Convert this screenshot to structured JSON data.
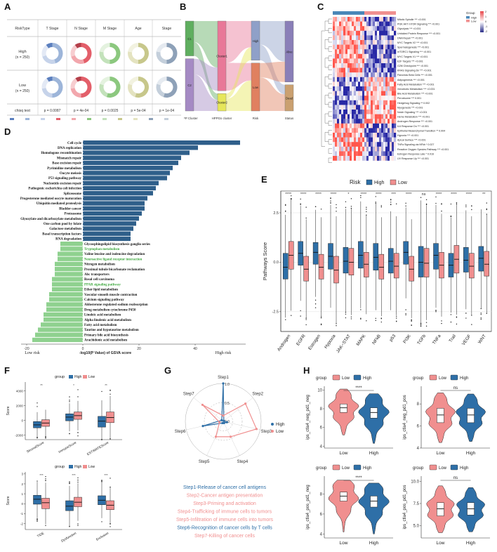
{
  "labels": {
    "A": "A",
    "B": "B",
    "C": "C",
    "D": "D",
    "E": "E",
    "F": "F",
    "G": "G",
    "H": "H"
  },
  "colors": {
    "high": "#2e6fa7",
    "low": "#f08f8f",
    "bar_pos": "#2f5f8a",
    "bar_neg": "#8fd18f",
    "green_text": "#3aa63a"
  },
  "panelA": {
    "headers": [
      "RiskType",
      "T Stage",
      "N Stage",
      "M Stage",
      "Age",
      "Stage"
    ],
    "rows": [
      {
        "name": "High",
        "n": "(n = 250)"
      },
      {
        "name": "Low",
        "n": "(n = 250)"
      }
    ],
    "test_label": "chisq test",
    "pvalues": [
      "p = 0.0087",
      "p = 4e-04",
      "p = 0.0025",
      "p = 5e-04",
      "p = 1e-04"
    ]
  },
  "panelB": {
    "axis_labels": [
      "TPP Cluster",
      "HPPGs cluster",
      "Risk",
      "Status"
    ],
    "col1": [
      "C1",
      "C2"
    ],
    "col2": [
      "Cluster1",
      "Cluster2"
    ],
    "col3": [
      "High",
      "Low"
    ],
    "col4": [
      "Alive",
      "Dead"
    ]
  },
  "panelC": {
    "legend_title": "Group",
    "legend_items": [
      "High",
      "Low"
    ],
    "scale": [
      "2",
      "1",
      "0",
      "-1",
      "-2"
    ],
    "pathways": [
      "Mitotic Spindle *** <0.001",
      "PI3K AKT mTOR Signaling *** <0.001",
      "Glycolysis *** <0.001",
      "Unfolded Protein Response *** <0.001",
      "DNA Repair *** <0.001",
      "MYC Targets V2 *** <0.001",
      "Spermatogenesis *** <0.001",
      "mTORC1 Signaling *** <0.001",
      "MYC Targets V1 *** <0.001",
      "E2F Targets *** <0.001",
      "G2M Checkpoint *** <0.001",
      "KRAS Signaling Dn *** <0.001",
      "Pancreas Beta Cells *** <0.001",
      "Adipogenesis *** <0.001",
      "Fatty Acid Metabolism *** <0.001",
      "Xenobiotic Metabolism *** <0.001",
      "Bile Acid Metabolism *** <0.001",
      "Peroxisome *** 0.001",
      "Hedgehog Signaling ** 0.002",
      "Myogenesis *** <0.001",
      "Notch Signaling *** <0.001",
      "Heme Metabolism *** <0.001",
      "Androgen Response *** <0.001",
      "IL6 Response Dn *** <0.001",
      "Epithelial Mesenchymal Transition ** 0.004",
      "Hypoxia *** <0.001",
      "Apical Surface *** <0.001",
      "TNFa Signaling via NFkb * 0.027",
      "Reactive Oxygen Species Pathway *** <0.001",
      "Estrogen Response Late * 0.016",
      "UV Response Up *** <0.001"
    ]
  },
  "panelF_legend": {
    "title": "group",
    "high": "High",
    "low": "Low"
  },
  "panelG": {
    "steps": [
      "Step1",
      "Step2",
      "Step3",
      "Step4",
      "Step5",
      "Step6",
      "Step7"
    ],
    "ticks": [
      "1.0",
      "0.5",
      "0.0"
    ],
    "legend": [
      "High",
      "Low"
    ],
    "descriptions": [
      "Step1-Release of cancer cell antigens",
      "Step2-Cancer antigen presentation",
      "Step3-Priming and activation",
      "Step4-Trafficking of immune cells to tumors",
      "Step5-Infiltration of immune cells into tumors",
      "Step6-Recognition of cancer cells by T cells",
      "Step7-Killing of cancer cells"
    ],
    "desc_colors": [
      "#2e6fa7",
      "#f08f8f",
      "#f08f8f",
      "#f08f8f",
      "#f08f8f",
      "#2e6fa7",
      "#f08f8f"
    ]
  },
  "chart_data": [
    {
      "id": "D",
      "type": "bar",
      "orientation": "horizontal",
      "xlabel": "-log10(P Value) of GSVA score",
      "annotations": [
        "Low risk",
        "High risk"
      ],
      "xticks": [
        "-20",
        "0",
        "20",
        "40"
      ],
      "xlim": [
        -22,
        58
      ],
      "categories": [
        "Cell cycle",
        "DNA replication",
        "Homologous recombination",
        "Mismatch repair",
        "Base excision repair",
        "Pyrimidine metabolism",
        "Oocyte meiosis",
        "P53 signaling pathway",
        "Nucleotide excision repair",
        "Pathogenic escherichia coli infection",
        "Spliceosome",
        "Progesterone mediated oocyte maturation",
        "Ubiquitin mediated proteolysis",
        "Bladder cancer",
        "Proteasome",
        "Glyoxylate and dicarboxylate metabolism",
        "One carbon pool by folate",
        "Galactose metabolism",
        "Basal transcription factors",
        "RNA degradation",
        "Glycosphingolipid biosynthesis ganglio series",
        "Tryptophan metabolism",
        "Valine leucine and isoleucine degradation",
        "Neuroactive ligand receptor interaction",
        "Nitrogen metabolism",
        "Proximal tubule bicarbonate reclamation",
        "Abc transporters",
        "Basal cell carcinoma",
        "PPAR signaling pathway",
        "Ether lipid metabolism",
        "Vascular smooth muscle contraction",
        "Calcium signaling pathway",
        "Aldosterone regulated sodium reabsorption",
        "Drug metabolism cytochrome P450",
        "Linoleic acid metabolism",
        "Alpha linolenic acid metabolism",
        "Fatty acid metabolism",
        "Taurine and hypotaurine metabolism",
        "Primary bile acid biosynthesis",
        "Arachidonic acid metabolism"
      ],
      "values": [
        56,
        41,
        38,
        35,
        34,
        32,
        31,
        30,
        27,
        26,
        25,
        23,
        22,
        22,
        21,
        20,
        19,
        18,
        17,
        17,
        -8,
        -8,
        -9,
        -9,
        -10,
        -10,
        -10,
        -11,
        -11,
        -11,
        -12,
        -12,
        -13,
        -13,
        -14,
        -14,
        -15,
        -16,
        -17,
        -18
      ],
      "green_labels": [
        21,
        23,
        28
      ]
    },
    {
      "id": "E",
      "type": "box",
      "title": "Risk",
      "legend": [
        "High",
        "Low"
      ],
      "ylabel": "Pathways Score",
      "yticks": [
        "-2.5",
        "0.0",
        "2.5"
      ],
      "ylim": [
        -3.5,
        3.6
      ],
      "categories": [
        "Androgen",
        "EGFR",
        "Estrogen",
        "Hypoxia",
        "JAK−STAT",
        "MAPK",
        "NFkB",
        "p53",
        "PI3K",
        "TGFb",
        "TNFa",
        "Trail",
        "VEGF",
        "WNT"
      ],
      "significance": [
        "****",
        "****",
        "****",
        "****",
        "*",
        "****",
        "****",
        "***",
        "****",
        "ns",
        "****",
        "****",
        "****",
        "**"
      ],
      "series": [
        {
          "name": "High",
          "median": [
            -0.25,
            0.45,
            0.5,
            0.3,
            0.05,
            0.35,
            0.25,
            0.05,
            0.5,
            0.0,
            0.35,
            -0.15,
            0.1,
            0.2
          ],
          "q1": [
            -0.85,
            -0.15,
            -0.1,
            -0.35,
            -0.55,
            -0.3,
            -0.4,
            -0.55,
            -0.1,
            -0.75,
            -0.35,
            -0.75,
            -0.5,
            -0.45
          ],
          "q3": [
            0.45,
            1.05,
            1.0,
            0.95,
            0.75,
            1.05,
            0.95,
            0.7,
            1.05,
            0.8,
            0.95,
            0.45,
            0.75,
            0.8
          ]
        },
        {
          "name": "Low",
          "median": [
            0.35,
            -0.35,
            -0.25,
            -0.4,
            0.0,
            -0.1,
            -0.25,
            -0.2,
            -0.35,
            -0.05,
            -0.15,
            0.15,
            -0.2,
            -0.1
          ],
          "q1": [
            -0.35,
            -0.95,
            -0.85,
            -1.05,
            -0.65,
            -0.75,
            -0.85,
            -0.8,
            -0.95,
            -0.75,
            -0.8,
            -0.55,
            -0.8,
            -0.7
          ],
          "q3": [
            1.05,
            0.3,
            0.4,
            0.3,
            0.7,
            0.5,
            0.4,
            0.45,
            0.3,
            0.7,
            0.5,
            0.85,
            0.45,
            0.55
          ]
        }
      ]
    },
    {
      "id": "F_top",
      "type": "box",
      "ylabel": "Score",
      "yticks": [
        "-2000",
        "0",
        "2000",
        "4000"
      ],
      "ylim": [
        -2600,
        5200
      ],
      "categories": [
        "StromalScore",
        "ImmuneScore",
        "ESTIMATEScore"
      ],
      "significance": [
        "**",
        "*",
        "**"
      ],
      "series": [
        {
          "name": "High",
          "median": [
            -600,
            450,
            -100
          ],
          "q1": [
            -1000,
            -50,
            -900
          ],
          "q3": [
            -150,
            900,
            550
          ]
        },
        {
          "name": "Low",
          "median": [
            -350,
            650,
            400
          ],
          "q1": [
            -800,
            150,
            -300
          ],
          "q3": [
            100,
            1150,
            1150
          ]
        }
      ]
    },
    {
      "id": "F_bottom",
      "type": "box",
      "ylabel": "Score",
      "yticks": [
        "-2",
        "-1",
        "0",
        "1",
        "2",
        "3"
      ],
      "ylim": [
        -2.6,
        3.2
      ],
      "categories": [
        "TIDE",
        "Dysfunction",
        "Exclusion"
      ],
      "significance": [
        "***",
        "***",
        "***"
      ],
      "series": [
        {
          "name": "High",
          "median": [
            0.45,
            -0.25,
            0.35
          ],
          "q1": [
            -0.05,
            -0.7,
            -0.1
          ],
          "q3": [
            0.85,
            0.3,
            0.8
          ]
        },
        {
          "name": "Low",
          "median": [
            0.1,
            0.15,
            -0.15
          ],
          "q1": [
            -0.5,
            -0.3,
            -0.6
          ],
          "q3": [
            0.55,
            0.65,
            0.3
          ]
        }
      ]
    },
    {
      "id": "G",
      "type": "radar",
      "axes": [
        "Step1",
        "Step2",
        "Step3",
        "Step4",
        "Step5",
        "Step6",
        "Step7"
      ],
      "rmax": 1.0,
      "series": [
        {
          "name": "High",
          "values": [
            1.0,
            0.02,
            0.1,
            0.05,
            0.05,
            0.55,
            0.05
          ]
        },
        {
          "name": "Low",
          "values": [
            0.15,
            0.75,
            0.9,
            0.45,
            0.45,
            0.1,
            0.7
          ]
        }
      ]
    },
    {
      "id": "H",
      "type": "violin",
      "legend_title": "group",
      "legend": [
        "Low",
        "High"
      ],
      "subplots": [
        {
          "ylabel": "ips_ctla4_neg_pd1_neg",
          "yticks": [
            "4",
            "6",
            "8",
            "10"
          ],
          "ylim": [
            3.8,
            10.4
          ],
          "sig": "****",
          "groups": [
            "Low",
            "High"
          ],
          "median": [
            8.1,
            7.6
          ],
          "q1": [
            7.6,
            7.0
          ],
          "q3": [
            8.5,
            8.1
          ],
          "min": [
            5.2,
            4.3
          ],
          "max": [
            10.1,
            9.6
          ]
        },
        {
          "ylabel": "ips_ctla4_neg_pd1_pos",
          "yticks": [
            "4",
            "6",
            "8"
          ],
          "ylim": [
            4.0,
            9.6
          ],
          "sig": "ns",
          "groups": [
            "Low",
            "High"
          ],
          "median": [
            7.0,
            7.0
          ],
          "q1": [
            6.3,
            6.3
          ],
          "q3": [
            7.6,
            7.6
          ],
          "min": [
            4.5,
            4.6
          ],
          "max": [
            9.0,
            8.9
          ]
        },
        {
          "ylabel": "ips_ctla4_pos_pd1_neg",
          "yticks": [
            "4",
            "6",
            "8"
          ],
          "ylim": [
            3.6,
            9.8
          ],
          "sig": "****",
          "groups": [
            "Low",
            "High"
          ],
          "median": [
            7.8,
            7.3
          ],
          "q1": [
            7.3,
            6.7
          ],
          "q3": [
            8.2,
            7.8
          ],
          "min": [
            4.2,
            4.0
          ],
          "max": [
            9.4,
            9.1
          ]
        },
        {
          "ylabel": "ips_ctla4_pos_pd1_pos",
          "yticks": [
            "5.0",
            "7.5",
            "10.0"
          ],
          "ylim": [
            3.6,
            10.6
          ],
          "sig": "ns",
          "groups": [
            "Low",
            "High"
          ],
          "median": [
            6.9,
            6.9
          ],
          "q1": [
            6.1,
            6.2
          ],
          "q3": [
            7.6,
            7.6
          ],
          "min": [
            4.2,
            4.3
          ],
          "max": [
            9.5,
            9.3
          ]
        }
      ]
    }
  ]
}
